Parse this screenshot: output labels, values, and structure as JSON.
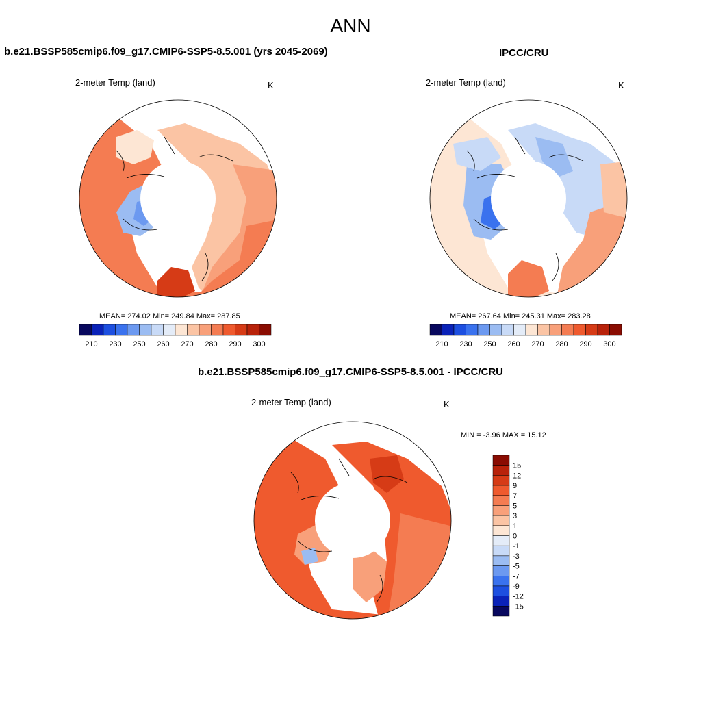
{
  "page": {
    "title": "ANN"
  },
  "panels": {
    "model": {
      "title": "b.e21.BSSP585cmip6.f09_g17.CMIP6-SSP5-8.5.001 (yrs 2045-2069)",
      "variable": "2-meter Temp (land)",
      "units": "K",
      "stats": {
        "mean": "274.02",
        "min": "249.84",
        "max": "287.85"
      },
      "stats_text": "MEAN= 274.02  Min= 249.84  Max= 287.85"
    },
    "obs": {
      "title": "IPCC/CRU",
      "variable": "2-meter Temp (land)",
      "units": "K",
      "stats": {
        "mean": "267.64",
        "min": "245.31",
        "max": "283.28"
      },
      "stats_text": "MEAN= 267.64  Min= 245.31  Max= 283.28"
    },
    "diff": {
      "title": "b.e21.BSSP585cmip6.f09_g17.CMIP6-SSP5-8.5.001 - IPCC/CRU",
      "variable": "2-meter Temp (land)",
      "units": "K",
      "stats": {
        "min": "-3.96",
        "max": "15.12"
      },
      "stats_text": "MIN =  -3.96 MAX =  15.12"
    }
  },
  "colorbars": {
    "absolute": {
      "labels": [
        "210",
        "230",
        "250",
        "260",
        "270",
        "280",
        "290",
        "300"
      ],
      "colors": [
        "#08085e",
        "#0a22b8",
        "#1d4fe0",
        "#3a72ee",
        "#6c99f0",
        "#9bbcf2",
        "#c8daf7",
        "#e4ecf8",
        "#fde6d4",
        "#fbc4a4",
        "#f8a07a",
        "#f47c52",
        "#ef5a2e",
        "#d63b16",
        "#b8220a",
        "#8a0c02"
      ]
    },
    "difference": {
      "labels": [
        "15",
        "12",
        "9",
        "7",
        "5",
        "3",
        "1",
        "0",
        "-1",
        "-3",
        "-5",
        "-7",
        "-9",
        "-12",
        "-15"
      ],
      "colors": [
        "#8a0c02",
        "#b8220a",
        "#d63b16",
        "#ef5a2e",
        "#f47c52",
        "#f8a07a",
        "#fbc4a4",
        "#fde6d4",
        "#e4ecf8",
        "#c8daf7",
        "#9bbcf2",
        "#6c99f0",
        "#3a72ee",
        "#1d4fe0",
        "#0a22b8",
        "#08085e"
      ]
    }
  }
}
